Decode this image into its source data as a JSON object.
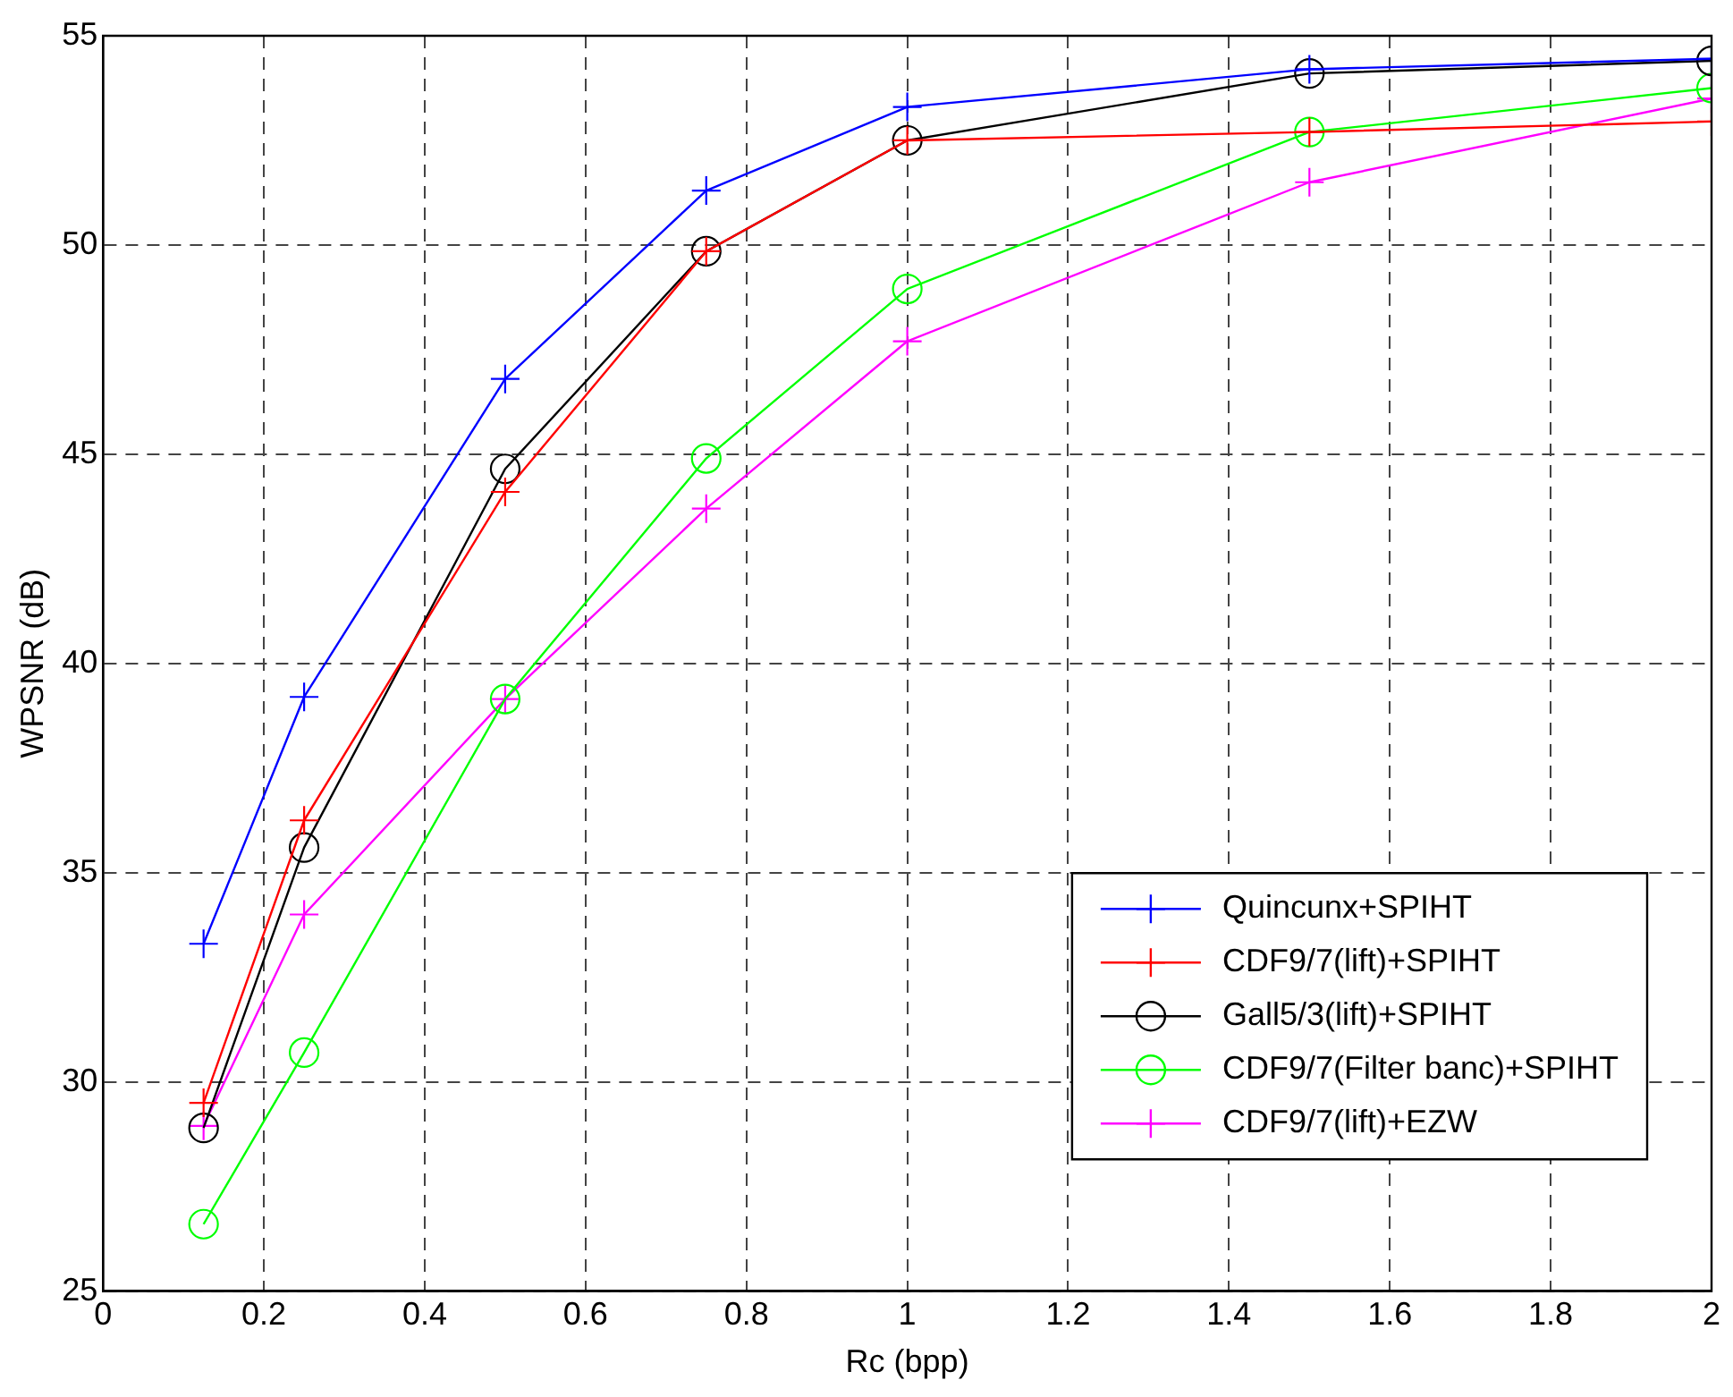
{
  "chart_data": {
    "type": "line",
    "xlabel": "Rc (bpp)",
    "ylabel": "WPSNR (dB)",
    "x": [
      0.125,
      0.25,
      0.5,
      0.75,
      1,
      1.5,
      2
    ],
    "series": [
      {
        "name": "Quincunx+SPIHT",
        "color": "#0000ff",
        "marker": "cross",
        "values": [
          33.3,
          39.2,
          46.8,
          51.3,
          53.3,
          54.2,
          54.45
        ]
      },
      {
        "name": "CDF9/7(lift)+SPIHT",
        "color": "#ff0000",
        "marker": "cross",
        "values": [
          29.5,
          36.25,
          44.1,
          49.85,
          52.5,
          52.7,
          52.95
        ]
      },
      {
        "name": "Gall5/3(lift)+SPIHT",
        "color": "#000000",
        "marker": "circle",
        "values": [
          28.9,
          35.6,
          44.65,
          49.85,
          52.5,
          54.1,
          54.4
        ]
      },
      {
        "name": "CDF9/7(Filter banc)+SPIHT",
        "color": "#00ff00",
        "marker": "circle",
        "values": [
          26.6,
          30.7,
          39.15,
          44.9,
          48.95,
          52.7,
          53.75
        ]
      },
      {
        "name": "CDF9/7(lift)+EZW",
        "color": "#ff00ff",
        "marker": "cross",
        "values": [
          28.95,
          34.0,
          39.15,
          43.7,
          47.7,
          51.5,
          53.5
        ]
      }
    ],
    "xlim": [
      0,
      2
    ],
    "xticks": [
      0,
      0.2,
      0.4,
      0.6,
      0.8,
      1,
      1.2,
      1.4,
      1.6,
      1.8,
      2
    ],
    "ylim": [
      25,
      55
    ],
    "yticks": [
      25,
      30,
      35,
      40,
      45,
      50,
      55
    ],
    "grid": true,
    "legend": "right",
    "line_style": "solid"
  }
}
